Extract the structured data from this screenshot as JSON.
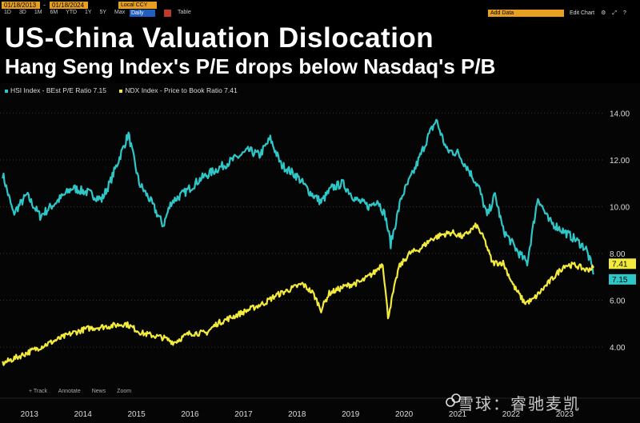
{
  "toolbar": {
    "start_date": "01/18/2013",
    "dash": "-",
    "end_date": "01/18/2024",
    "periods": [
      "1D",
      "3D",
      "1M",
      "6M",
      "YTD",
      "1Y",
      "5Y",
      "Max"
    ],
    "currency": "Local CCY",
    "frequency": "Daily",
    "table_label": "Table",
    "add_data_placeholder": "Add Data",
    "right_tools": [
      "Edit Chart",
      "⚙",
      "⤢",
      "?"
    ]
  },
  "header": {
    "title": "US-China Valuation Dislocation",
    "subtitle": "Hang Seng Index's P/E drops below Nasdaq's P/B"
  },
  "bottom_tools": [
    "+ Track",
    "Annotate",
    "News",
    "Zoom"
  ],
  "watermark": {
    "text": "雪球：睿驰麦凯"
  },
  "colors": {
    "background": "#000000",
    "hsi": "#2fc6c8",
    "ndx": "#f2ea3d",
    "grid": "#333333"
  },
  "chart_data": {
    "type": "line",
    "x_ticks": [
      "2013",
      "2014",
      "2015",
      "2016",
      "2017",
      "2018",
      "2019",
      "2020",
      "2021",
      "2022",
      "2023"
    ],
    "y_ticks": [
      "4.00",
      "6.00",
      "8.00",
      "10.00",
      "12.00",
      "14.00"
    ],
    "ylim": [
      2.5,
      14.8
    ],
    "grid": "horizontal dotted",
    "legend_position": "top-left",
    "series": [
      {
        "name": "HSI Index - BEst P/E Ratio 7.15",
        "last_value_label": "7.15",
        "x": [
          2013.0,
          2013.2,
          2013.45,
          2013.7,
          2014.0,
          2014.3,
          2014.6,
          2014.85,
          2015.0,
          2015.2,
          2015.35,
          2015.55,
          2015.75,
          2016.0,
          2016.15,
          2016.4,
          2016.7,
          2017.0,
          2017.3,
          2017.6,
          2017.8,
          2018.0,
          2018.2,
          2018.5,
          2018.75,
          2018.95,
          2019.15,
          2019.35,
          2019.6,
          2019.85,
          2020.0,
          2020.15,
          2020.25,
          2020.45,
          2020.7,
          2020.95,
          2021.1,
          2021.3,
          2021.5,
          2021.7,
          2021.9,
          2022.05,
          2022.2,
          2022.35,
          2022.5,
          2022.65,
          2022.8,
          2023.0,
          2023.2,
          2023.45,
          2023.7,
          2023.9,
          2024.05
        ],
        "values": [
          11.4,
          9.7,
          10.5,
          9.6,
          10.2,
          10.8,
          10.6,
          10.3,
          11.0,
          12.2,
          13.1,
          11.0,
          10.3,
          9.2,
          10.2,
          10.6,
          11.2,
          11.6,
          12.0,
          12.4,
          12.2,
          12.9,
          11.8,
          11.3,
          10.6,
          10.2,
          10.8,
          11.0,
          10.3,
          10.0,
          10.3,
          9.6,
          8.4,
          10.4,
          11.6,
          13.0,
          13.7,
          12.4,
          12.3,
          11.6,
          10.8,
          9.6,
          10.5,
          9.0,
          8.5,
          8.0,
          7.6,
          10.4,
          9.4,
          9.0,
          8.6,
          8.2,
          7.15
        ]
      },
      {
        "name": "NDX Index - Price to Book Ratio 7.41",
        "last_value_label": "7.41",
        "x": [
          2013.0,
          2013.3,
          2013.6,
          2014.0,
          2014.3,
          2014.6,
          2015.0,
          2015.3,
          2015.6,
          2015.8,
          2016.0,
          2016.2,
          2016.5,
          2016.8,
          2017.0,
          2017.3,
          2017.6,
          2017.9,
          2018.1,
          2018.3,
          2018.6,
          2018.8,
          2018.95,
          2019.1,
          2019.4,
          2019.7,
          2019.95,
          2020.1,
          2020.2,
          2020.4,
          2020.6,
          2020.8,
          2021.0,
          2021.2,
          2021.4,
          2021.6,
          2021.85,
          2022.0,
          2022.15,
          2022.35,
          2022.55,
          2022.75,
          2022.9,
          2023.1,
          2023.3,
          2023.5,
          2023.7,
          2023.9,
          2024.05
        ],
        "values": [
          3.3,
          3.6,
          3.9,
          4.3,
          4.6,
          4.8,
          4.9,
          5.0,
          4.6,
          4.5,
          4.4,
          4.2,
          4.6,
          4.6,
          5.0,
          5.3,
          5.6,
          5.9,
          6.2,
          6.4,
          6.7,
          6.3,
          5.6,
          6.3,
          6.6,
          6.8,
          7.2,
          7.6,
          5.3,
          7.4,
          8.0,
          8.2,
          8.6,
          8.8,
          8.9,
          8.7,
          9.2,
          8.6,
          7.6,
          7.6,
          6.6,
          5.9,
          6.0,
          6.5,
          7.0,
          7.5,
          7.5,
          7.3,
          7.41
        ]
      }
    ]
  }
}
